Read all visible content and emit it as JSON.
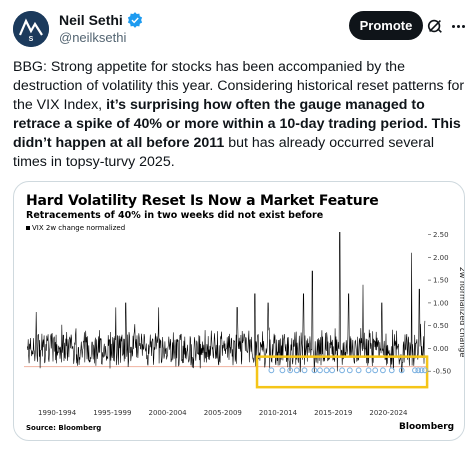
{
  "author": {
    "name": "Neil Sethi",
    "handle": "@neilksethi",
    "verified": true,
    "verified_color": "#1d9bf0",
    "avatar_icon": "s-logo-icon"
  },
  "actions": {
    "promote_label": "Promote",
    "grok_icon": "grok-icon",
    "more_icon": "more-icon"
  },
  "tweet": {
    "text_1": "BBG: Strong appetite for stocks has been accompanied by the destruction of volatility this year. Considering historical reset patterns for the VIX Index, ",
    "text_bold_1": "it’s surprising how often the gauge managed to retrace a spike of 40% or more within a 10-day trading period. This didn’t happen at all before 2011",
    "text_2": " but has already occurred several times in topsy-turvy 2025."
  },
  "chart_data": {
    "type": "line",
    "title": "Hard Volatility Reset Is Now a Market Feature",
    "subtitle": "Retracements of 40% in two weeks did not exist before",
    "legend": [
      "VIX 2w change normalized"
    ],
    "ylabel": "2w normalized change",
    "ylim": [
      -1.0,
      2.6
    ],
    "yticks": [
      "2.50",
      "2.00",
      "1.50",
      "1.00",
      "0.50",
      "0.00",
      "-0.50"
    ],
    "xticks": [
      "1990-1994",
      "1995-1999",
      "2000-2004",
      "2005-2009",
      "2010-2014",
      "2015-2019",
      "2020-2024"
    ],
    "threshold": -0.4,
    "threshold_color": "#f0b2a0",
    "highlight_color": "#f5c518",
    "series_color": "#000000",
    "marker_color": "#7ab0e0",
    "spikes": [
      {
        "year": 1990.6,
        "value": 0.8
      },
      {
        "year": 1997.8,
        "value": 0.9
      },
      {
        "year": 1998.7,
        "value": 1.0
      },
      {
        "year": 2001.7,
        "value": 0.9
      },
      {
        "year": 2008.8,
        "value": 0.9
      },
      {
        "year": 2010.4,
        "value": 1.2
      },
      {
        "year": 2011.6,
        "value": 1.0
      },
      {
        "year": 2014.8,
        "value": 1.2
      },
      {
        "year": 2015.6,
        "value": 1.7
      },
      {
        "year": 2018.1,
        "value": 2.55
      },
      {
        "year": 2018.9,
        "value": 1.2
      },
      {
        "year": 2020.2,
        "value": 1.4
      },
      {
        "year": 2021.9,
        "value": 1.0
      },
      {
        "year": 2024.6,
        "value": 2.1
      },
      {
        "year": 2025.3,
        "value": 1.3
      }
    ],
    "reset_markers": [
      2011.9,
      2012.9,
      2013.6,
      2014.2,
      2014.9,
      2015.8,
      2016.3,
      2016.9,
      2017.4,
      2018.3,
      2019.0,
      2019.8,
      2020.7,
      2021.3,
      2022.0,
      2022.8,
      2023.7,
      2024.9,
      2025.2,
      2025.5,
      2025.8
    ],
    "source": "Source: Bloomberg",
    "brand": "Bloomberg"
  }
}
